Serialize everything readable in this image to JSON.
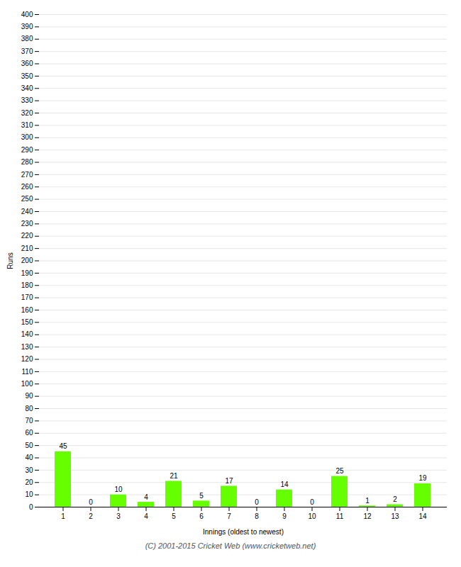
{
  "chart_data": {
    "type": "bar",
    "xlabel": "Innings (oldest to newest)",
    "ylabel": "Runs",
    "categories": [
      "1",
      "2",
      "3",
      "4",
      "5",
      "6",
      "7",
      "8",
      "9",
      "10",
      "11",
      "12",
      "13",
      "14"
    ],
    "values": [
      45,
      0,
      10,
      4,
      21,
      5,
      17,
      0,
      14,
      0,
      25,
      1,
      2,
      19
    ],
    "color": "#66ff00",
    "ylim": [
      0,
      400
    ],
    "yticks": [
      0,
      10,
      20,
      30,
      40,
      50,
      60,
      70,
      80,
      90,
      100,
      110,
      120,
      130,
      140,
      150,
      160,
      170,
      180,
      190,
      200,
      210,
      220,
      230,
      240,
      250,
      260,
      270,
      280,
      290,
      300,
      310,
      320,
      330,
      340,
      350,
      360,
      370,
      380,
      390,
      400
    ],
    "grid": true,
    "data_labels": true,
    "annotations": [
      "(C) 2001-2015 Cricket Web (www.cricketweb.net)"
    ]
  }
}
